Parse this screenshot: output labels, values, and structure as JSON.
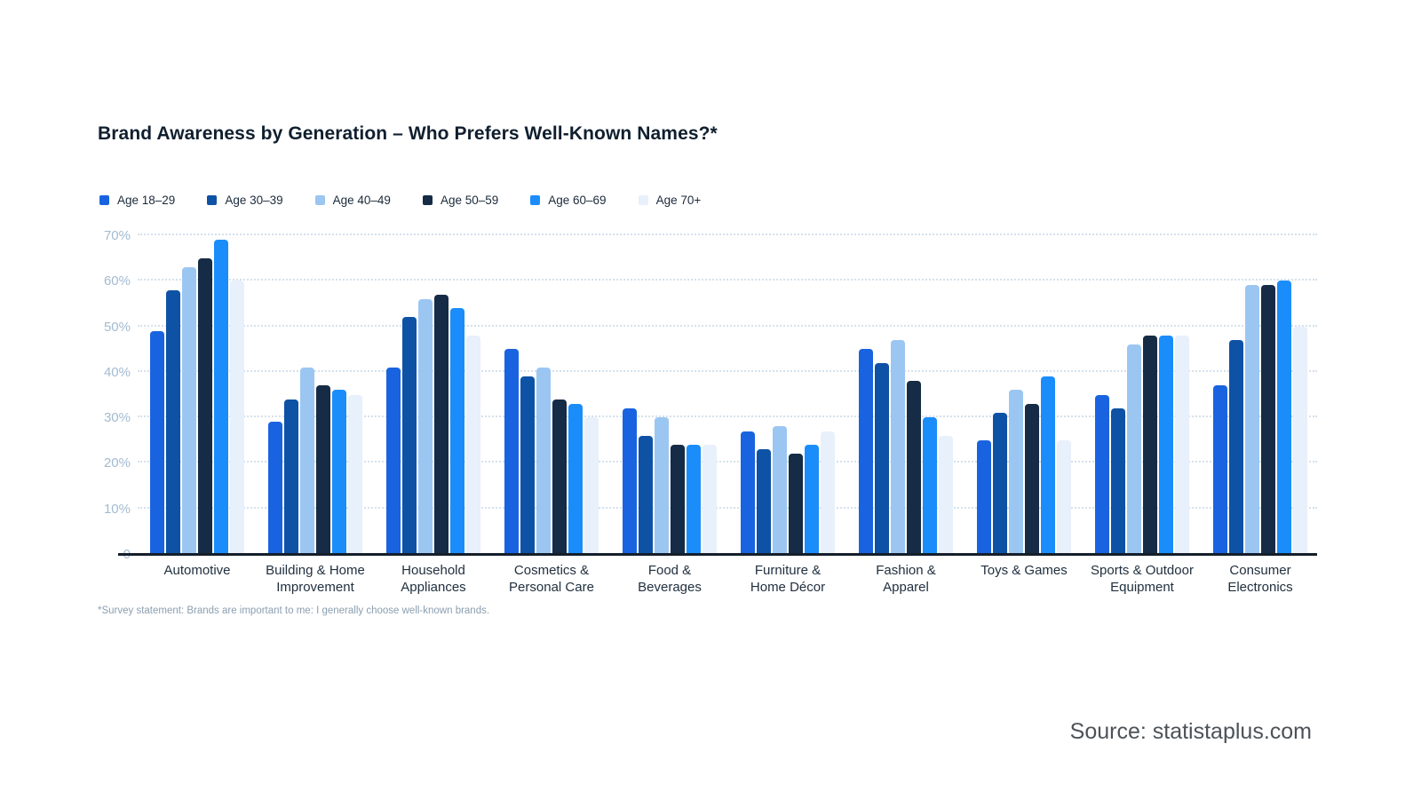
{
  "page": {
    "title": "Brand Awareness by Generation – Who Prefers Well-Known Names?*",
    "footnote": "*Survey statement: Brands are important to me: I generally choose well-known brands.",
    "source": "Source: statistaplus.com"
  },
  "colors": {
    "series": [
      "#1a63e0",
      "#0e52a5",
      "#9cc6f2",
      "#162b45",
      "#1b8dfb",
      "#e7f0fb"
    ],
    "grid": "#d4e1ec",
    "tick_text": "#a2bbd0",
    "baseline": "#151f2b",
    "title_text": "#101f2e",
    "category_text": "#21303f",
    "legend_text": "#1b2a3a",
    "footnote_text": "#8b9eb0",
    "source_text": "#4d5257"
  },
  "chart_data": {
    "type": "bar",
    "title": "Brand Awareness by Generation – Who Prefers Well-Known Names?*",
    "categories": [
      "Automotive",
      "Building & Home\nImprovement",
      "Household\nAppliances",
      "Cosmetics &\nPersonal Care",
      "Food &\nBeverages",
      "Furniture &\nHome Décor",
      "Fashion &\nApparel",
      "Toys & Games",
      "Sports & Outdoor\nEquipment",
      "Consumer\nElectronics"
    ],
    "series": [
      {
        "name": "Age 18–29",
        "values": [
          49,
          29,
          41,
          45,
          32,
          27,
          45,
          25,
          35,
          37
        ]
      },
      {
        "name": "Age 30–39",
        "values": [
          58,
          34,
          52,
          39,
          26,
          23,
          42,
          31,
          32,
          47
        ]
      },
      {
        "name": "Age 40–49",
        "values": [
          63,
          41,
          56,
          41,
          30,
          28,
          47,
          36,
          46,
          59
        ]
      },
      {
        "name": "Age 50–59",
        "values": [
          65,
          37,
          57,
          34,
          24,
          22,
          38,
          33,
          48,
          59
        ]
      },
      {
        "name": "Age 60–69",
        "values": [
          69,
          36,
          54,
          33,
          24,
          24,
          30,
          39,
          48,
          60
        ]
      },
      {
        "name": "Age 70+",
        "values": [
          60,
          35,
          48,
          30,
          24,
          27,
          26,
          25,
          48,
          50
        ]
      }
    ],
    "xlabel": "",
    "ylabel": "",
    "ylim": [
      0,
      70
    ],
    "yticks": [
      {
        "value": 0,
        "label": "0"
      },
      {
        "value": 10,
        "label": "10%"
      },
      {
        "value": 20,
        "label": "20%"
      },
      {
        "value": 30,
        "label": "30%"
      },
      {
        "value": 40,
        "label": "40%"
      },
      {
        "value": 50,
        "label": "50%"
      },
      {
        "value": 60,
        "label": "60%"
      },
      {
        "value": 70,
        "label": "70%"
      }
    ],
    "grid": "horizontal-dotted",
    "legend_position": "top-left"
  }
}
